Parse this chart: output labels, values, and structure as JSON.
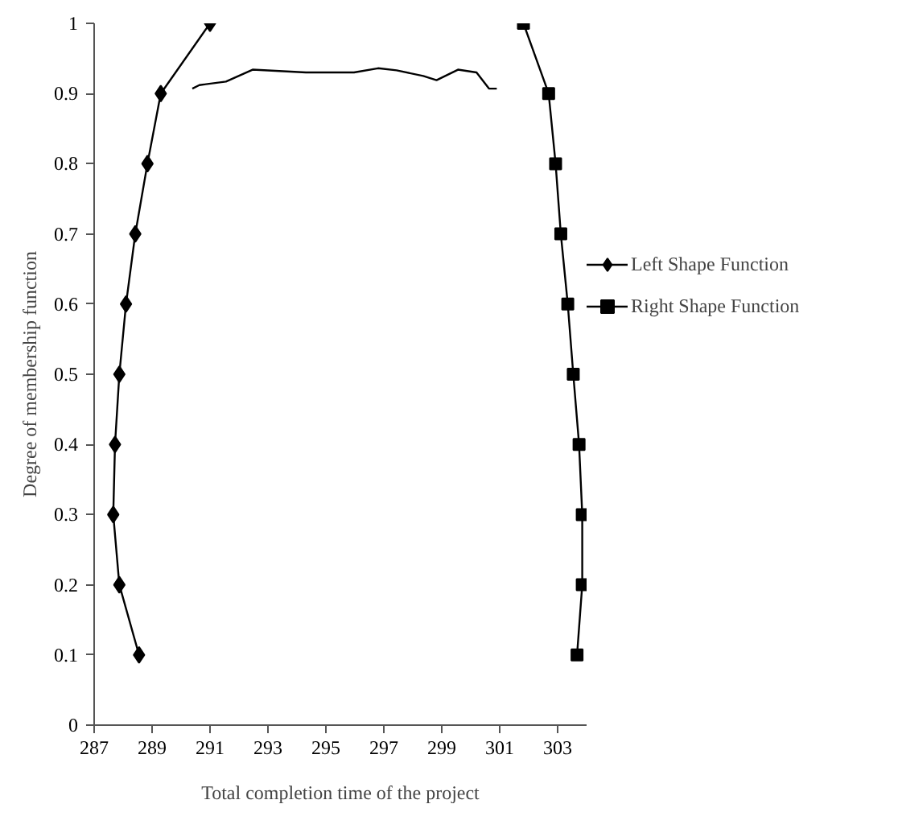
{
  "chart_data": {
    "type": "line",
    "xlabel": "Total completion time of the project",
    "ylabel": "Degree of membership function",
    "xlim": [
      287,
      304
    ],
    "xticks": [
      287,
      289,
      291,
      293,
      295,
      297,
      299,
      301,
      303
    ],
    "ylim": [
      0,
      1
    ],
    "yticks": [
      0,
      0.1,
      0.2,
      0.3,
      0.4,
      0.5,
      0.6,
      0.7,
      0.8,
      0.9,
      1
    ],
    "grid": false,
    "legend": "right",
    "line_style": "solid",
    "series": [
      {
        "name": "Left Shape Function",
        "color": "#000000",
        "marker": "diamond",
        "x": [
          288.55,
          287.87,
          287.66,
          287.72,
          287.87,
          288.1,
          288.42,
          288.84,
          289.3,
          291.0
        ],
        "values": [
          0.1,
          0.2,
          0.3,
          0.4,
          0.5,
          0.6,
          0.7,
          0.8,
          0.9,
          1.0
        ]
      },
      {
        "name": "Right Shape Function",
        "color": "#000000",
        "marker": "square",
        "x": [
          303.67,
          303.85,
          303.85,
          303.74,
          303.54,
          303.35,
          303.11,
          302.93,
          302.69,
          301.82
        ],
        "values": [
          0.1,
          0.2,
          0.3,
          0.4,
          0.5,
          0.6,
          0.7,
          0.8,
          0.9,
          1.0
        ]
      },
      {
        "color": "#000000",
        "marker": "none",
        "x": [
          290.39,
          290.63,
          291.55,
          292.47,
          294.31,
          295.97,
          296.8,
          297.44,
          298.36,
          298.82,
          299.56,
          300.2,
          300.63,
          300.9
        ],
        "values": [
          0.907,
          0.912,
          0.917,
          0.934,
          0.93,
          0.93,
          0.936,
          0.933,
          0.925,
          0.919,
          0.934,
          0.93,
          0.907,
          0.907
        ]
      }
    ]
  }
}
